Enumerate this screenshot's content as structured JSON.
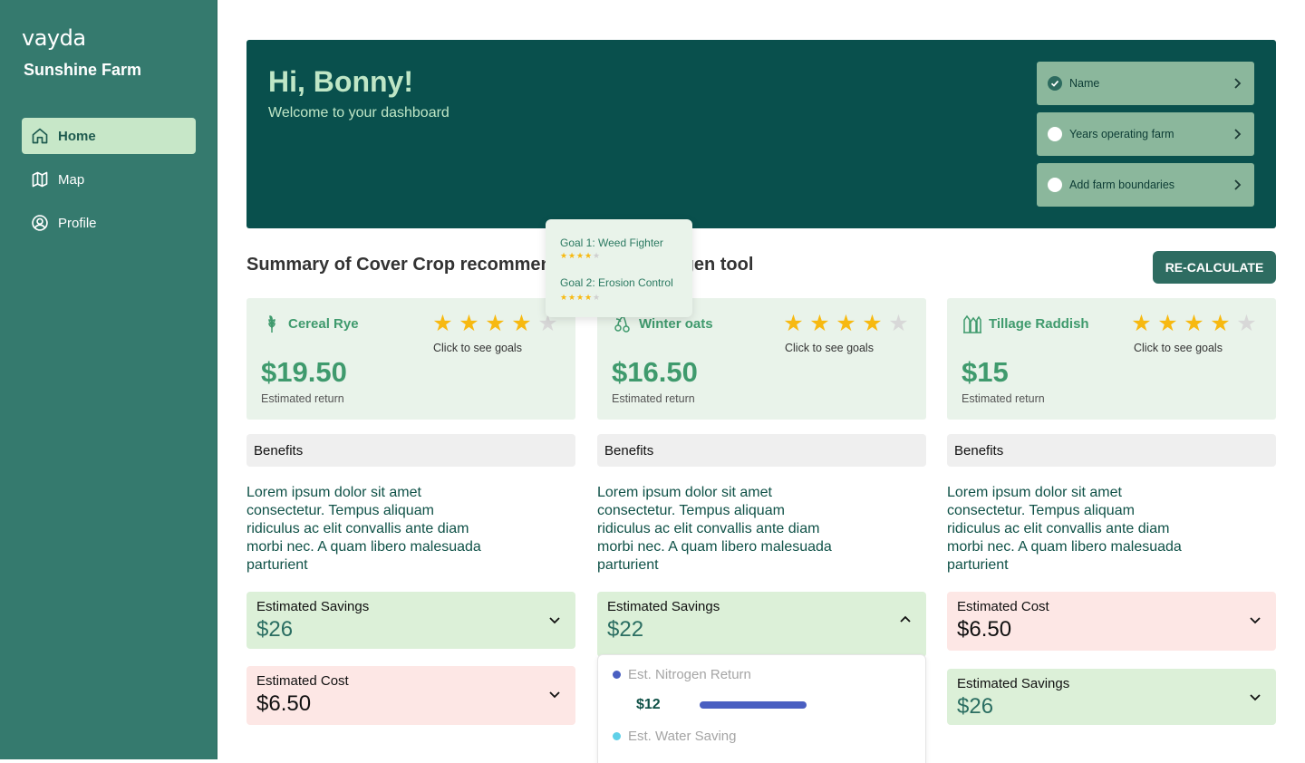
{
  "brand": {
    "logo": "vayda",
    "farm_name": "Sunshine Farm"
  },
  "nav": [
    {
      "label": "Home",
      "icon": "home-icon",
      "active": true
    },
    {
      "label": "Map",
      "icon": "map-icon",
      "active": false
    },
    {
      "label": "Profile",
      "icon": "profile-icon",
      "active": false
    }
  ],
  "hero": {
    "greeting": "Hi, Bonny!",
    "subtitle": "Welcome to your dashboard",
    "tasks": [
      {
        "label": "Name",
        "done": true
      },
      {
        "label": "Years operating farm",
        "done": false
      },
      {
        "label": "Add farm boundaries",
        "done": false
      }
    ]
  },
  "summary": {
    "title_part1": "Summary of Cover Crop recommen",
    "title_part2": "d-gen tool",
    "recalc_label": "RE-CALCULATE"
  },
  "goals_popover": [
    {
      "label": "Goal 1: Weed Fighter",
      "rating": 4,
      "max": 5
    },
    {
      "label": "Goal 2: Erosion Control",
      "rating": 4,
      "max": 5
    }
  ],
  "crops": [
    {
      "name": "Cereal Rye",
      "icon": "wheat-icon",
      "rating": 4,
      "max_rating": 5,
      "goals_link": "Click to see goals",
      "price": "$19.50",
      "price_label": "Estimated return",
      "benefits_label": "Benefits",
      "description": "Lorem ipsum dolor sit amet consectetur. Tempus aliquam ridiculus ac elit convallis ante diam morbi nec. A quam libero malesuada parturient",
      "panels": [
        {
          "title": "Estimated Savings",
          "value": "$26",
          "tone": "green",
          "expanded": false
        },
        {
          "title": "Estimated Cost",
          "value": "$6.50",
          "tone": "pink",
          "expanded": false
        }
      ]
    },
    {
      "name": "Winter oats",
      "icon": "oats-icon",
      "rating": 4,
      "max_rating": 5,
      "goals_link": "Click to see goals",
      "price": "$16.50",
      "price_label": "Estimated return",
      "benefits_label": "Benefits",
      "description": "Lorem ipsum dolor sit amet consectetur. Tempus aliquam ridiculus ac elit convallis ante diam morbi nec. A quam libero malesuada parturient",
      "panels": [
        {
          "title": "Estimated Savings",
          "value": "$22",
          "tone": "green",
          "expanded": true
        }
      ],
      "breakdown": [
        {
          "label": "Est. Nitrogen Return",
          "amount": "$12",
          "color": "#4a5fc1"
        },
        {
          "label": "Est. Water Saving",
          "color": "#5fd0e8"
        }
      ]
    },
    {
      "name": "Tillage Raddish",
      "icon": "radish-icon",
      "rating": 4,
      "max_rating": 5,
      "goals_link": "Click to see goals",
      "price": "$15",
      "price_label": "Estimated return",
      "benefits_label": "Benefits",
      "description": "Lorem ipsum dolor sit amet consectetur. Tempus aliquam ridiculus ac elit convallis ante diam morbi nec. A quam libero malesuada parturient",
      "panels": [
        {
          "title": "Estimated Cost",
          "value": "$6.50",
          "tone": "pink",
          "expanded": false
        },
        {
          "title": "Estimated Savings",
          "value": "$26",
          "tone": "green",
          "expanded": false
        }
      ]
    }
  ],
  "colors": {
    "sidebar": "#357a6e",
    "hero": "#09504d",
    "accent": "#3f9a6d",
    "star": "#f7b911"
  }
}
